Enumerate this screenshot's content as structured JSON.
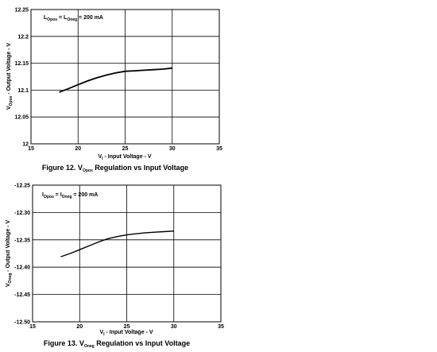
{
  "chart_data": [
    {
      "type": "line",
      "caption": {
        "prefix": "Figure 12. V",
        "sub": "Opos",
        "suffix": " Regulation vs Input Voltage"
      },
      "annotation": {
        "a": "L",
        "a_sub": "Opos",
        "mid": " = L",
        "b_sub": "Oneg",
        "end": " = 200 mA"
      },
      "xlabel": {
        "a": "V",
        "a_sub": "I",
        "b": " - Input Voltage - V"
      },
      "ylabel": {
        "a": "V",
        "a_sub": "Opos",
        "b": " - Output Voltage - V"
      },
      "xlim": [
        15,
        35
      ],
      "ylim": [
        12,
        12.25
      ],
      "x_ticks": [
        "15",
        "20",
        "25",
        "30",
        "35"
      ],
      "y_ticks": [
        "12",
        "12.05",
        "12.1",
        "12.15",
        "12.2",
        "12.25"
      ],
      "grid": true,
      "series": [
        {
          "x": [
            18,
            19,
            20,
            21,
            22,
            23,
            24,
            25,
            26,
            27,
            28,
            29,
            30
          ],
          "y": [
            12.096,
            12.103,
            12.11,
            12.117,
            12.123,
            12.128,
            12.132,
            12.135,
            12.136,
            12.137,
            12.138,
            12.139,
            12.141
          ]
        }
      ]
    },
    {
      "type": "line",
      "caption": {
        "prefix": "Figure 13. V",
        "sub": "Oneg",
        "suffix": " Regulation vs Input Voltage"
      },
      "annotation": {
        "a": "I",
        "a_sub": "Opos",
        "mid": " = I",
        "b_sub": "Oneg",
        "end": " = 200 mA"
      },
      "xlabel": {
        "a": "V",
        "a_sub": "I",
        "b": " - Input Voltage - V"
      },
      "ylabel": {
        "a": "V",
        "a_sub": "Oneg",
        "b": " - Output Voltage - V"
      },
      "xlim": [
        15,
        35
      ],
      "ylim": [
        -12.5,
        -12.25
      ],
      "x_ticks": [
        "15",
        "20",
        "25",
        "30",
        "35"
      ],
      "y_ticks": [
        "-12.50",
        "-12.45",
        "-12.40",
        "-12.35",
        "-12.30",
        "-12.25"
      ],
      "grid": true,
      "series": [
        {
          "x": [
            18,
            19,
            20,
            21,
            22,
            23,
            24,
            25,
            26,
            27,
            28,
            29,
            30
          ],
          "y": [
            -12.381,
            -12.375,
            -12.368,
            -12.361,
            -12.354,
            -12.348,
            -12.344,
            -12.341,
            -12.339,
            -12.337,
            -12.336,
            -12.335,
            -12.334
          ]
        }
      ]
    }
  ]
}
